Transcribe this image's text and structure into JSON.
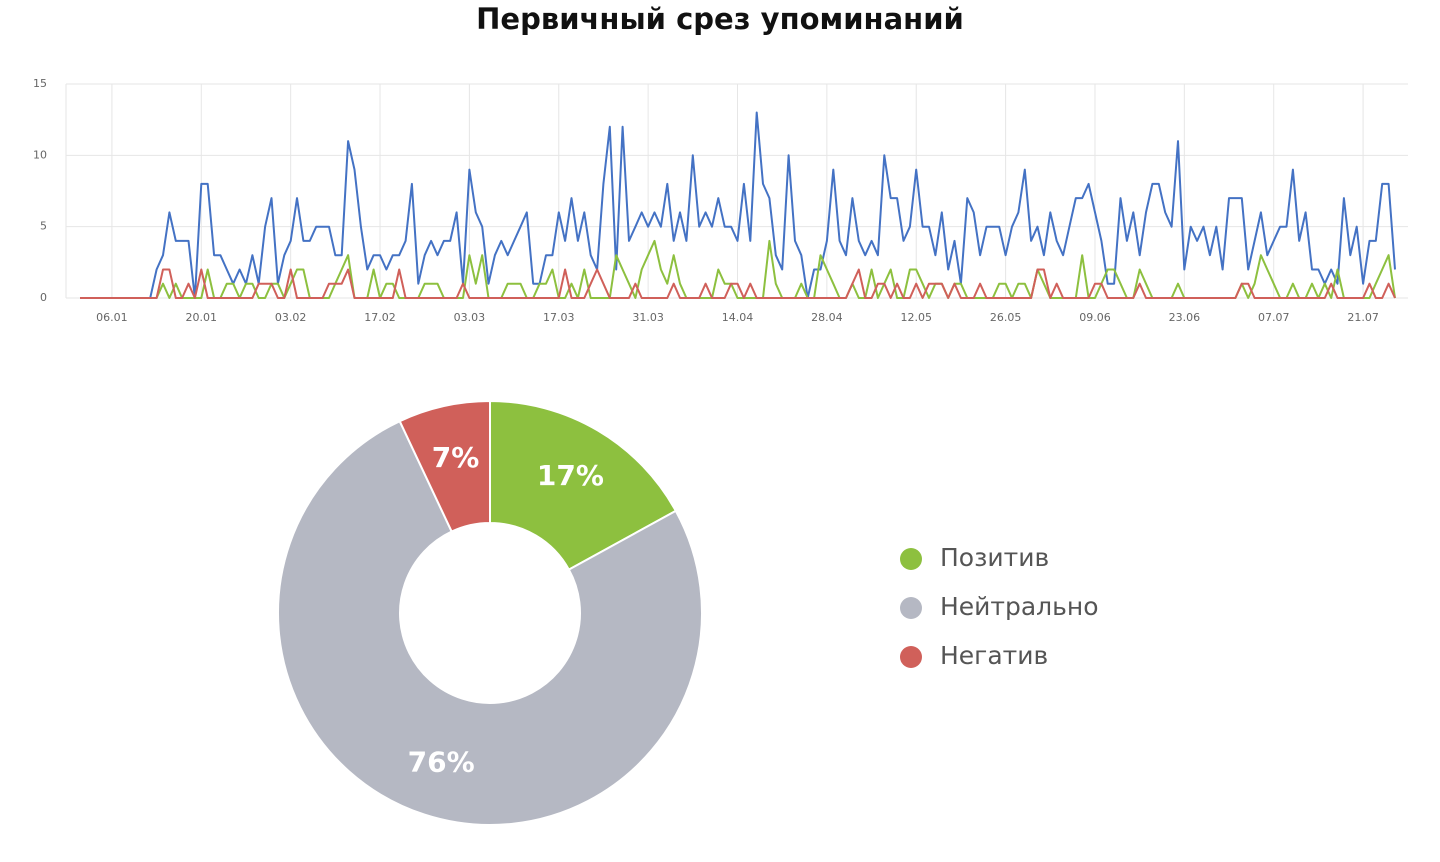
{
  "title": "Первичный срез упоминаний",
  "chart_data": [
    {
      "type": "line",
      "categories": [
        null,
        null,
        null,
        null,
        null,
        "06.01",
        null,
        null,
        null,
        null,
        null,
        null,
        null,
        null,
        null,
        null,
        null,
        null,
        null,
        "20.01",
        null,
        null,
        null,
        null,
        null,
        null,
        null,
        null,
        null,
        null,
        null,
        null,
        null,
        "03.02",
        null,
        null,
        null,
        null,
        null,
        null,
        null,
        null,
        null,
        null,
        null,
        null,
        null,
        "17.02",
        null,
        null,
        null,
        null,
        null,
        null,
        null,
        null,
        null,
        null,
        null,
        null,
        null,
        "03.03",
        null,
        null,
        null,
        null,
        null,
        null,
        null,
        null,
        null,
        null,
        null,
        null,
        null,
        "17.03",
        null,
        null,
        null,
        null,
        null,
        null,
        null,
        null,
        null,
        null,
        null,
        null,
        null,
        "31.03",
        null,
        null,
        null,
        null,
        null,
        null,
        null,
        null,
        null,
        null,
        null,
        null,
        null,
        "14.04",
        null,
        null,
        null,
        null,
        null,
        null,
        null,
        null,
        null,
        null,
        null,
        null,
        null,
        "28.04",
        null,
        null,
        null,
        null,
        null,
        null,
        null,
        null,
        null,
        null,
        null,
        null,
        null,
        "12.05",
        null,
        null,
        null,
        null,
        null,
        null,
        null,
        null,
        null,
        null,
        null,
        null,
        null,
        "26.05",
        null,
        null,
        null,
        null,
        null,
        null,
        null,
        null,
        null,
        null,
        null,
        null,
        null,
        "09.06",
        null,
        null,
        null,
        null,
        null,
        null,
        null,
        null,
        null,
        null,
        null,
        null,
        null,
        "23.06",
        null,
        null,
        null,
        null,
        null,
        null,
        null,
        null,
        null,
        null,
        null,
        null,
        null,
        "07.07",
        null,
        null,
        null,
        null,
        null,
        null,
        null,
        null,
        null,
        null,
        null,
        null,
        null,
        "21.07",
        null,
        null,
        null,
        null,
        null
      ],
      "series": [
        {
          "color": "#4472c4",
          "values": [
            0,
            0,
            0,
            0,
            0,
            0,
            0,
            0,
            0,
            0,
            0,
            0,
            2,
            3,
            6,
            4,
            4,
            4,
            0,
            8,
            8,
            3,
            3,
            2,
            1,
            2,
            1,
            3,
            1,
            5,
            7,
            1,
            3,
            4,
            7,
            4,
            4,
            5,
            5,
            5,
            3,
            3,
            11,
            9,
            5,
            2,
            3,
            3,
            2,
            3,
            3,
            4,
            8,
            1,
            3,
            4,
            3,
            4,
            4,
            6,
            1,
            9,
            6,
            5,
            1,
            3,
            4,
            3,
            4,
            5,
            6,
            1,
            1,
            3,
            3,
            6,
            4,
            7,
            4,
            6,
            3,
            2,
            8,
            12,
            2,
            12,
            4,
            5,
            6,
            5,
            6,
            5,
            8,
            4,
            6,
            4,
            10,
            5,
            6,
            5,
            7,
            5,
            5,
            4,
            8,
            4,
            13,
            8,
            7,
            3,
            2,
            10,
            4,
            3,
            0,
            2,
            2,
            4,
            9,
            4,
            3,
            7,
            4,
            3,
            4,
            3,
            10,
            7,
            7,
            4,
            5,
            9,
            5,
            5,
            3,
            6,
            2,
            4,
            1,
            7,
            6,
            3,
            5,
            5,
            5,
            3,
            5,
            6,
            9,
            4,
            5,
            3,
            6,
            4,
            3,
            5,
            7,
            7,
            8,
            6,
            4,
            1,
            1,
            7,
            4,
            6,
            3,
            6,
            8,
            8,
            6,
            5,
            11,
            2,
            5,
            4,
            5,
            3,
            5,
            2,
            7,
            7,
            7,
            2,
            4,
            6,
            3,
            4,
            5,
            5,
            9,
            4,
            6,
            2,
            2,
            1,
            2,
            1,
            7,
            3,
            5,
            1,
            4,
            4,
            8,
            8,
            2
          ]
        },
        {
          "color": "#8dc03f",
          "values": [
            0,
            0,
            0,
            0,
            0,
            0,
            0,
            0,
            0,
            0,
            0,
            0,
            0,
            1,
            0,
            1,
            0,
            0,
            0,
            0,
            2,
            0,
            0,
            1,
            1,
            0,
            1,
            1,
            0,
            0,
            1,
            1,
            0,
            1,
            2,
            2,
            0,
            0,
            0,
            0,
            1,
            2,
            3,
            0,
            0,
            0,
            2,
            0,
            1,
            1,
            0,
            0,
            0,
            0,
            1,
            1,
            1,
            0,
            0,
            0,
            0,
            3,
            1,
            3,
            0,
            0,
            0,
            1,
            1,
            1,
            0,
            0,
            1,
            1,
            2,
            0,
            0,
            1,
            0,
            2,
            0,
            0,
            0,
            0,
            3,
            2,
            1,
            0,
            2,
            3,
            4,
            2,
            1,
            3,
            1,
            0,
            0,
            0,
            0,
            0,
            2,
            1,
            1,
            0,
            0,
            0,
            0,
            0,
            4,
            1,
            0,
            0,
            0,
            1,
            0,
            0,
            3,
            2,
            1,
            0,
            0,
            1,
            0,
            0,
            2,
            0,
            1,
            2,
            0,
            0,
            2,
            2,
            1,
            0,
            1,
            1,
            0,
            1,
            1,
            0,
            0,
            0,
            0,
            0,
            1,
            1,
            0,
            1,
            1,
            0,
            2,
            1,
            0,
            0,
            0,
            0,
            0,
            3,
            0,
            0,
            1,
            2,
            2,
            1,
            0,
            0,
            2,
            1,
            0,
            0,
            0,
            0,
            1,
            0,
            0,
            0,
            0,
            0,
            0,
            0,
            0,
            0,
            1,
            0,
            1,
            3,
            2,
            1,
            0,
            0,
            1,
            0,
            0,
            1,
            0,
            1,
            0,
            2,
            0,
            0,
            0,
            0,
            0,
            1,
            2,
            3,
            0
          ]
        },
        {
          "color": "#d0605a",
          "values": [
            0,
            0,
            0,
            0,
            0,
            0,
            0,
            0,
            0,
            0,
            0,
            0,
            0,
            2,
            2,
            0,
            0,
            1,
            0,
            2,
            0,
            0,
            0,
            0,
            0,
            0,
            0,
            0,
            1,
            1,
            1,
            0,
            0,
            2,
            0,
            0,
            0,
            0,
            0,
            1,
            1,
            1,
            2,
            0,
            0,
            0,
            0,
            0,
            0,
            0,
            2,
            0,
            0,
            0,
            0,
            0,
            0,
            0,
            0,
            0,
            1,
            0,
            0,
            0,
            0,
            0,
            0,
            0,
            0,
            0,
            0,
            0,
            0,
            0,
            0,
            0,
            2,
            0,
            0,
            0,
            1,
            2,
            1,
            0,
            0,
            0,
            0,
            1,
            0,
            0,
            0,
            0,
            0,
            1,
            0,
            0,
            0,
            0,
            1,
            0,
            0,
            0,
            1,
            1,
            0,
            1,
            0,
            0,
            0,
            0,
            0,
            0,
            0,
            0,
            0,
            0,
            0,
            0,
            0,
            0,
            0,
            1,
            2,
            0,
            0,
            1,
            1,
            0,
            1,
            0,
            0,
            1,
            0,
            1,
            1,
            1,
            0,
            1,
            0,
            0,
            0,
            1,
            0,
            0,
            0,
            0,
            0,
            0,
            0,
            0,
            2,
            2,
            0,
            1,
            0,
            0,
            0,
            0,
            0,
            1,
            1,
            0,
            0,
            0,
            0,
            0,
            1,
            0,
            0,
            0,
            0,
            0,
            0,
            0,
            0,
            0,
            0,
            0,
            0,
            0,
            0,
            0,
            1,
            1,
            0,
            0,
            0,
            0,
            0,
            0,
            0,
            0,
            0,
            0,
            0,
            0,
            1,
            0,
            0,
            0,
            0,
            0,
            1,
            0,
            0,
            1,
            0
          ]
        }
      ],
      "ylim": [
        0,
        15
      ],
      "yticks": [
        0,
        5,
        10,
        15
      ],
      "grid": true
    },
    {
      "type": "donut",
      "categories": [
        "Позитив",
        "Нейтрально",
        "Негатив"
      ],
      "values": [
        17,
        76,
        7
      ],
      "value_labels": [
        "17%",
        "76%",
        "7%"
      ],
      "colors": [
        "#8dc03f",
        "#b5b8c3",
        "#d0605a"
      ],
      "legend": "right"
    }
  ]
}
